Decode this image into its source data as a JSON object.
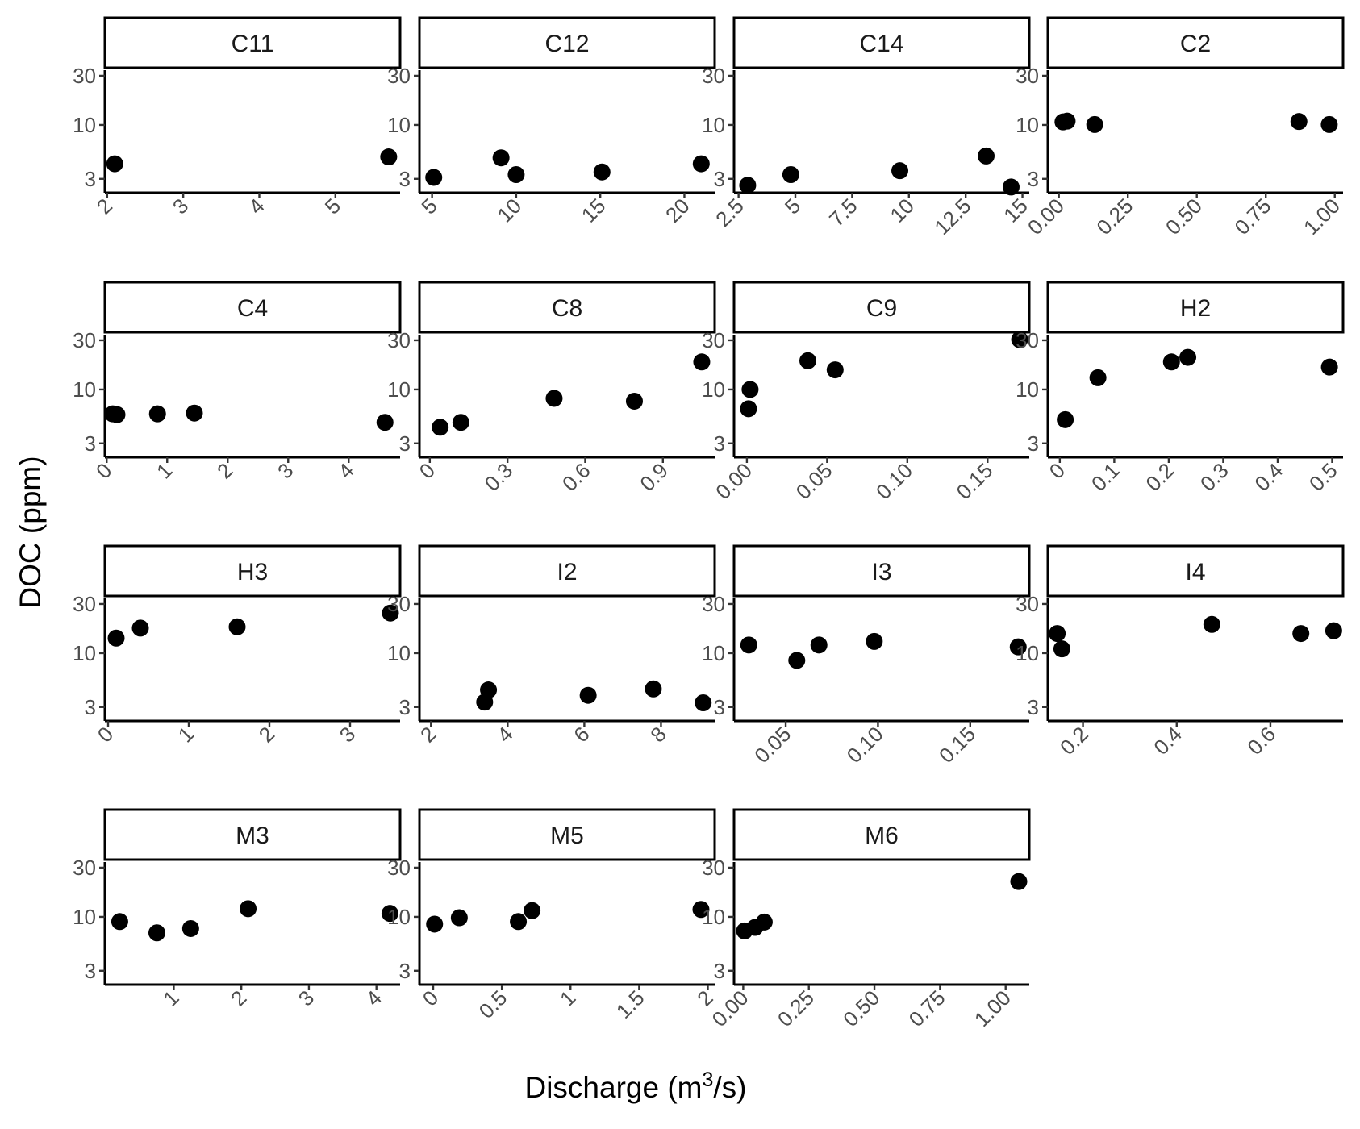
{
  "chart_data": {
    "type": "scatter",
    "layout": "facet_wrap",
    "ncol": 4,
    "xlabel": "Discharge (m³/s)",
    "xlabel_parts": {
      "pre": "Discharge (m",
      "sup": "3",
      "post": "/s)"
    },
    "ylabel": "DOC (ppm)",
    "y_scale": "log10",
    "y_ticks": [
      3,
      10,
      30
    ],
    "y_lim": [
      2.2,
      34
    ],
    "grid": false,
    "point_color": "#000000",
    "panels": [
      {
        "label": "C11",
        "xlim": [
          1.97,
          5.85
        ],
        "x_ticks": [
          2,
          3,
          4,
          5
        ],
        "points": [
          {
            "x": 2.1,
            "y": 4.2
          },
          {
            "x": 5.7,
            "y": 4.9
          }
        ]
      },
      {
        "label": "C12",
        "xlim": [
          4.25,
          21.8
        ],
        "x_ticks": [
          5,
          10,
          15,
          20
        ],
        "points": [
          {
            "x": 5.1,
            "y": 3.1
          },
          {
            "x": 9.1,
            "y": 4.8
          },
          {
            "x": 10.0,
            "y": 3.3
          },
          {
            "x": 15.1,
            "y": 3.5
          },
          {
            "x": 21.0,
            "y": 4.2
          }
        ]
      },
      {
        "label": "C14",
        "xlim": [
          2.3,
          15.3
        ],
        "x_ticks": [
          2.5,
          5.0,
          7.5,
          10.0,
          12.5,
          15.0
        ],
        "points": [
          {
            "x": 2.9,
            "y": 2.6
          },
          {
            "x": 4.8,
            "y": 3.3
          },
          {
            "x": 9.6,
            "y": 3.6
          },
          {
            "x": 13.4,
            "y": 5.0
          },
          {
            "x": 14.5,
            "y": 2.5
          }
        ]
      },
      {
        "label": "C2",
        "xlim": [
          -0.04,
          1.03
        ],
        "x_ticks": [
          0.0,
          0.25,
          0.5,
          0.75,
          1.0
        ],
        "x_tick_labels": [
          "0.00",
          "0.25",
          "0.50",
          "0.75",
          "1.00"
        ],
        "points": [
          {
            "x": 0.015,
            "y": 10.7
          },
          {
            "x": 0.03,
            "y": 10.9
          },
          {
            "x": 0.13,
            "y": 10.1
          },
          {
            "x": 0.87,
            "y": 10.8
          },
          {
            "x": 0.98,
            "y": 10.1
          }
        ]
      },
      {
        "label": "C4",
        "xlim": [
          -0.03,
          4.85
        ],
        "x_ticks": [
          0,
          1,
          2,
          3,
          4
        ],
        "points": [
          {
            "x": 0.1,
            "y": 5.8
          },
          {
            "x": 0.17,
            "y": 5.7
          },
          {
            "x": 0.84,
            "y": 5.8
          },
          {
            "x": 1.45,
            "y": 5.9
          },
          {
            "x": 4.6,
            "y": 4.8
          }
        ]
      },
      {
        "label": "C8",
        "xlim": [
          -0.04,
          1.1
        ],
        "x_ticks": [
          0.0,
          0.3,
          0.6,
          0.9
        ],
        "points": [
          {
            "x": 0.04,
            "y": 4.3
          },
          {
            "x": 0.12,
            "y": 4.8
          },
          {
            "x": 0.48,
            "y": 8.2
          },
          {
            "x": 0.79,
            "y": 7.7
          },
          {
            "x": 1.05,
            "y": 18.5
          }
        ]
      },
      {
        "label": "C9",
        "xlim": [
          -0.008,
          0.176
        ],
        "x_ticks": [
          0.0,
          0.05,
          0.1,
          0.15
        ],
        "x_tick_labels": [
          "0.00",
          "0.05",
          "0.10",
          "0.15"
        ],
        "points": [
          {
            "x": 0.002,
            "y": 10.0
          },
          {
            "x": 0.001,
            "y": 6.5
          },
          {
            "x": 0.038,
            "y": 19.0
          },
          {
            "x": 0.055,
            "y": 15.5
          },
          {
            "x": 0.17,
            "y": 30.5
          }
        ]
      },
      {
        "label": "H2",
        "xlim": [
          -0.022,
          0.52
        ],
        "x_ticks": [
          0.0,
          0.1,
          0.2,
          0.3,
          0.4,
          0.5
        ],
        "points": [
          {
            "x": 0.01,
            "y": 5.1
          },
          {
            "x": 0.07,
            "y": 13.0
          },
          {
            "x": 0.205,
            "y": 18.5
          },
          {
            "x": 0.235,
            "y": 20.5
          },
          {
            "x": 0.495,
            "y": 16.5
          }
        ]
      },
      {
        "label": "H3",
        "xlim": [
          -0.04,
          3.62
        ],
        "x_ticks": [
          0,
          1,
          2,
          3
        ],
        "points": [
          {
            "x": 0.1,
            "y": 14.0
          },
          {
            "x": 0.4,
            "y": 17.5
          },
          {
            "x": 1.6,
            "y": 18.0
          },
          {
            "x": 3.5,
            "y": 24.5
          }
        ]
      },
      {
        "label": "I2",
        "xlim": [
          1.7,
          9.4
        ],
        "x_ticks": [
          2,
          4,
          6,
          8
        ],
        "points": [
          {
            "x": 3.4,
            "y": 3.35
          },
          {
            "x": 3.5,
            "y": 4.4
          },
          {
            "x": 6.1,
            "y": 3.9
          },
          {
            "x": 7.8,
            "y": 4.5
          },
          {
            "x": 9.1,
            "y": 3.3
          }
        ]
      },
      {
        "label": "I3",
        "xlim": [
          0.022,
          0.182
        ],
        "x_ticks": [
          0.05,
          0.1,
          0.15
        ],
        "x_tick_labels": [
          "0.05",
          "0.10",
          "0.15"
        ],
        "points": [
          {
            "x": 0.03,
            "y": 12.0
          },
          {
            "x": 0.056,
            "y": 8.5
          },
          {
            "x": 0.068,
            "y": 12.0
          },
          {
            "x": 0.098,
            "y": 13.0
          },
          {
            "x": 0.176,
            "y": 11.5
          }
        ]
      },
      {
        "label": "I4",
        "xlim": [
          0.125,
          0.755
        ],
        "x_ticks": [
          0.2,
          0.4,
          0.6
        ],
        "points": [
          {
            "x": 0.145,
            "y": 15.5
          },
          {
            "x": 0.155,
            "y": 11.0
          },
          {
            "x": 0.475,
            "y": 19.0
          },
          {
            "x": 0.665,
            "y": 15.5
          },
          {
            "x": 0.735,
            "y": 16.5
          }
        ]
      },
      {
        "label": "M3",
        "xlim": [
          -0.02,
          4.35
        ],
        "x_ticks": [
          1,
          2,
          3,
          4
        ],
        "points": [
          {
            "x": 0.2,
            "y": 9.0
          },
          {
            "x": 0.75,
            "y": 7.0
          },
          {
            "x": 1.25,
            "y": 7.7
          },
          {
            "x": 2.1,
            "y": 12.0
          },
          {
            "x": 4.2,
            "y": 10.8
          }
        ]
      },
      {
        "label": "M5",
        "xlim": [
          -0.1,
          2.05
        ],
        "x_ticks": [
          0.0,
          0.5,
          1.0,
          1.5,
          2.0
        ],
        "points": [
          {
            "x": 0.01,
            "y": 8.5
          },
          {
            "x": 0.19,
            "y": 9.8
          },
          {
            "x": 0.62,
            "y": 9.0
          },
          {
            "x": 0.72,
            "y": 11.5
          },
          {
            "x": 1.95,
            "y": 11.8
          }
        ]
      },
      {
        "label": "M6",
        "xlim": [
          -0.035,
          1.09
        ],
        "x_ticks": [
          0.0,
          0.25,
          0.5,
          0.75,
          1.0
        ],
        "x_tick_labels": [
          "0.00",
          "0.25",
          "0.50",
          "0.75",
          "1.00"
        ],
        "points": [
          {
            "x": 0.005,
            "y": 7.3
          },
          {
            "x": 0.045,
            "y": 7.9
          },
          {
            "x": 0.08,
            "y": 8.9
          },
          {
            "x": 1.05,
            "y": 22.0
          }
        ]
      }
    ]
  }
}
